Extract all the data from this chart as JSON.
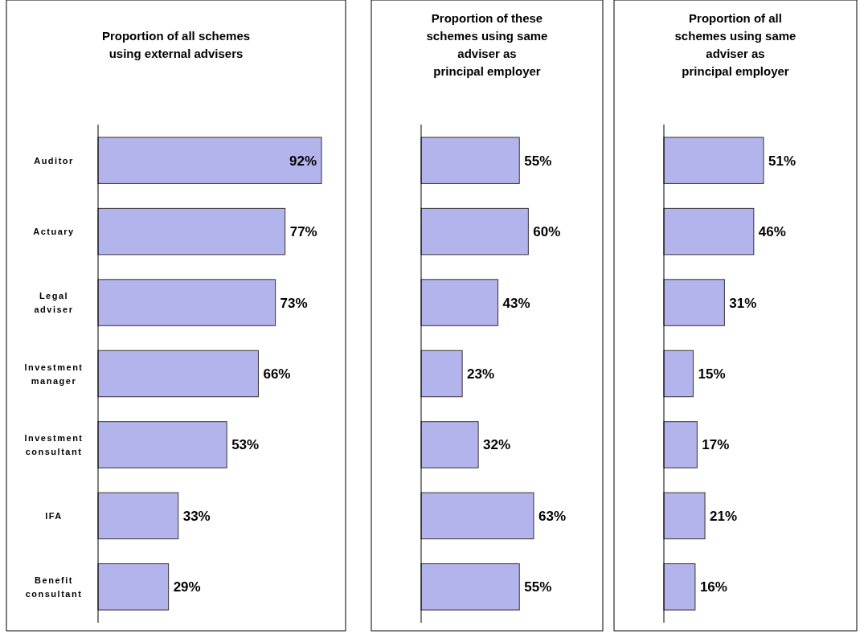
{
  "chart_data": [
    {
      "type": "bar",
      "orientation": "horizontal",
      "title": "Proportion of all schemes using external advisers",
      "categories": [
        "Auditor",
        "Actuary",
        "Legal adviser",
        "Investment manager",
        "Investment consultant",
        "IFA",
        "Benefit consultant"
      ],
      "values": [
        92,
        77,
        73,
        66,
        53,
        33,
        29
      ],
      "value_labels": [
        "92%",
        "77%",
        "73%",
        "66%",
        "53%",
        "33%",
        "29%"
      ],
      "color": "#b4b4ec",
      "tick_labels": "y"
    },
    {
      "type": "bar",
      "orientation": "horizontal",
      "title": "Proportion of these schemes using same adviser as principal employer",
      "categories": [
        null,
        null,
        null,
        null,
        null,
        null,
        null
      ],
      "values": [
        55,
        60,
        43,
        23,
        32,
        63,
        55
      ],
      "value_labels": [
        "55%",
        "60%",
        "43%",
        "23%",
        "32%",
        "63%",
        "55%"
      ],
      "color": "#b4b4ec",
      "tick_labels": false
    },
    {
      "type": "bar",
      "orientation": "horizontal",
      "title": "Proportion of all schemes using same adviser as principal employer",
      "categories": [
        null,
        null,
        null,
        null,
        null,
        null,
        null
      ],
      "values": [
        51,
        46,
        31,
        15,
        17,
        21,
        16
      ],
      "value_labels": [
        "51%",
        "46%",
        "31%",
        "15%",
        "17%",
        "21%",
        "16%"
      ],
      "color": "#b4b4ec",
      "tick_labels": false
    }
  ]
}
